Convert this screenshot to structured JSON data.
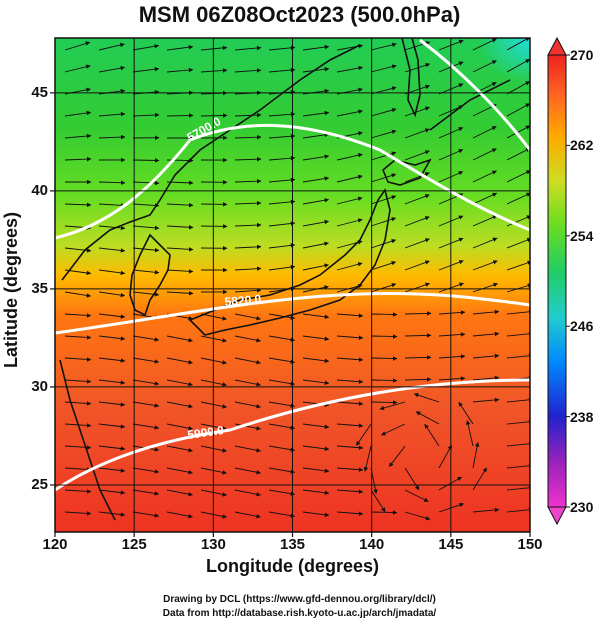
{
  "title": "MSM 06Z08Oct2023 (500.0hPa)",
  "xlabel": "Longitude (degrees)",
  "ylabel": "Latitude  (degrees)",
  "credits": [
    "Drawing by DCL (https://www.gfd-dennou.org/library/dcl/)",
    "Data from http://database.rish.kyoto-u.ac.jp/arch/jmadata/"
  ],
  "map": {
    "lon_range": [
      120,
      150
    ],
    "lat_range": [
      22.6,
      47.8
    ],
    "lon_ticks": [
      "120",
      "125",
      "130",
      "135",
      "140",
      "145",
      "150"
    ],
    "lat_ticks": [
      "25",
      "30",
      "35",
      "40",
      "45"
    ],
    "grid": true
  },
  "colorbar": {
    "range": [
      230,
      270
    ],
    "ticks": [
      "230",
      "238",
      "246",
      "254",
      "262",
      "270"
    ],
    "colors": [
      "#ee33cc",
      "#9922bb",
      "#2222cc",
      "#0088ff",
      "#22cccc",
      "#22cc66",
      "#66dd22",
      "#ccdd22",
      "#ffaa00",
      "#ff6622",
      "#ee2222"
    ]
  },
  "contours": [
    {
      "label": "5700.0"
    },
    {
      "label": "5820.0"
    },
    {
      "label": "5900.0"
    }
  ]
}
